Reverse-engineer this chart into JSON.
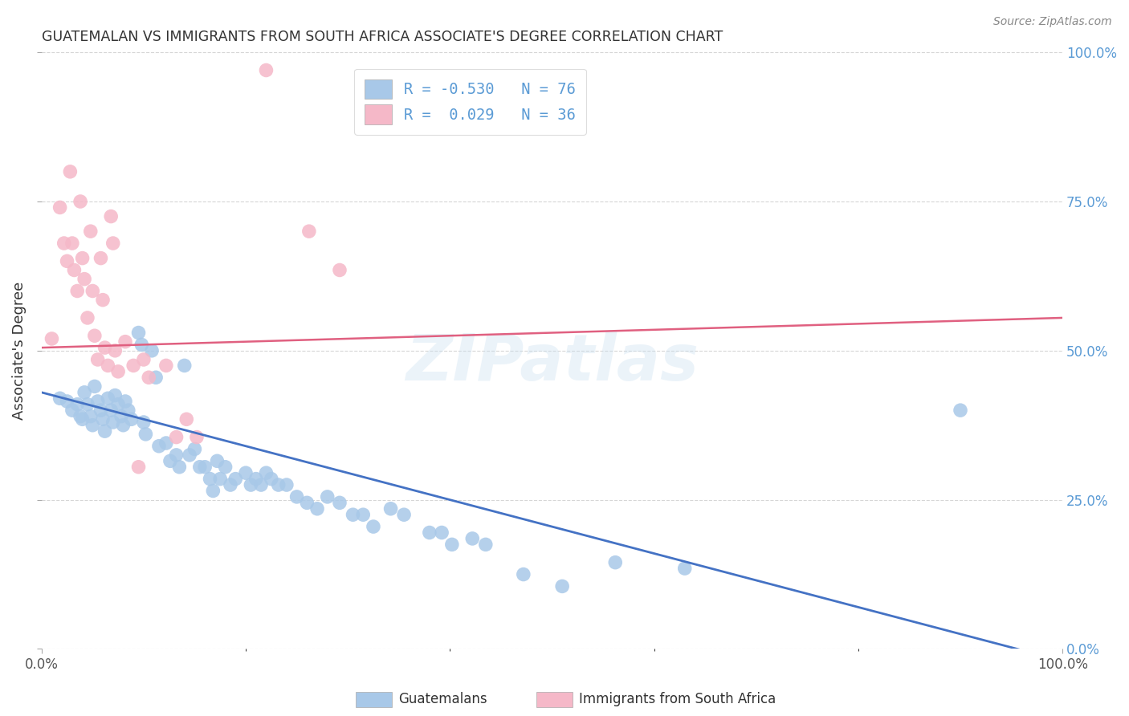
{
  "title": "GUATEMALAN VS IMMIGRANTS FROM SOUTH AFRICA ASSOCIATE'S DEGREE CORRELATION CHART",
  "source": "Source: ZipAtlas.com",
  "ylabel": "Associate's Degree",
  "ytick_labels": [
    "0.0%",
    "25.0%",
    "50.0%",
    "75.0%",
    "100.0%"
  ],
  "ytick_values": [
    0.0,
    0.25,
    0.5,
    0.75,
    1.0
  ],
  "xtick_left": "0.0%",
  "xtick_right": "100.0%",
  "legend_blue_label": "Guatemalans",
  "legend_pink_label": "Immigrants from South Africa",
  "legend_R_blue": "-0.530",
  "legend_N_blue": "76",
  "legend_R_pink": "0.029",
  "legend_N_pink": "36",
  "watermark": "ZIPatlas",
  "blue_color": "#a8c8e8",
  "pink_color": "#f5b8c8",
  "blue_line_color": "#4472c4",
  "pink_line_color": "#e06080",
  "right_axis_color": "#5b9bd5",
  "blue_scatter": [
    [
      0.018,
      0.42
    ],
    [
      0.025,
      0.415
    ],
    [
      0.03,
      0.4
    ],
    [
      0.035,
      0.41
    ],
    [
      0.038,
      0.39
    ],
    [
      0.04,
      0.385
    ],
    [
      0.042,
      0.43
    ],
    [
      0.045,
      0.41
    ],
    [
      0.048,
      0.39
    ],
    [
      0.05,
      0.375
    ],
    [
      0.052,
      0.44
    ],
    [
      0.055,
      0.415
    ],
    [
      0.058,
      0.4
    ],
    [
      0.06,
      0.385
    ],
    [
      0.062,
      0.365
    ],
    [
      0.065,
      0.42
    ],
    [
      0.068,
      0.4
    ],
    [
      0.07,
      0.38
    ],
    [
      0.072,
      0.425
    ],
    [
      0.075,
      0.41
    ],
    [
      0.078,
      0.39
    ],
    [
      0.08,
      0.375
    ],
    [
      0.082,
      0.415
    ],
    [
      0.085,
      0.4
    ],
    [
      0.088,
      0.385
    ],
    [
      0.095,
      0.53
    ],
    [
      0.098,
      0.51
    ],
    [
      0.1,
      0.38
    ],
    [
      0.102,
      0.36
    ],
    [
      0.108,
      0.5
    ],
    [
      0.112,
      0.455
    ],
    [
      0.115,
      0.34
    ],
    [
      0.122,
      0.345
    ],
    [
      0.126,
      0.315
    ],
    [
      0.132,
      0.325
    ],
    [
      0.135,
      0.305
    ],
    [
      0.14,
      0.475
    ],
    [
      0.145,
      0.325
    ],
    [
      0.15,
      0.335
    ],
    [
      0.155,
      0.305
    ],
    [
      0.16,
      0.305
    ],
    [
      0.165,
      0.285
    ],
    [
      0.168,
      0.265
    ],
    [
      0.172,
      0.315
    ],
    [
      0.175,
      0.285
    ],
    [
      0.18,
      0.305
    ],
    [
      0.185,
      0.275
    ],
    [
      0.19,
      0.285
    ],
    [
      0.2,
      0.295
    ],
    [
      0.205,
      0.275
    ],
    [
      0.21,
      0.285
    ],
    [
      0.215,
      0.275
    ],
    [
      0.22,
      0.295
    ],
    [
      0.225,
      0.285
    ],
    [
      0.232,
      0.275
    ],
    [
      0.24,
      0.275
    ],
    [
      0.25,
      0.255
    ],
    [
      0.26,
      0.245
    ],
    [
      0.27,
      0.235
    ],
    [
      0.28,
      0.255
    ],
    [
      0.292,
      0.245
    ],
    [
      0.305,
      0.225
    ],
    [
      0.315,
      0.225
    ],
    [
      0.325,
      0.205
    ],
    [
      0.342,
      0.235
    ],
    [
      0.355,
      0.225
    ],
    [
      0.38,
      0.195
    ],
    [
      0.392,
      0.195
    ],
    [
      0.402,
      0.175
    ],
    [
      0.422,
      0.185
    ],
    [
      0.435,
      0.175
    ],
    [
      0.472,
      0.125
    ],
    [
      0.51,
      0.105
    ],
    [
      0.562,
      0.145
    ],
    [
      0.63,
      0.135
    ],
    [
      0.9,
      0.4
    ]
  ],
  "pink_scatter": [
    [
      0.01,
      0.52
    ],
    [
      0.018,
      0.74
    ],
    [
      0.022,
      0.68
    ],
    [
      0.025,
      0.65
    ],
    [
      0.028,
      0.8
    ],
    [
      0.03,
      0.68
    ],
    [
      0.032,
      0.635
    ],
    [
      0.035,
      0.6
    ],
    [
      0.038,
      0.75
    ],
    [
      0.04,
      0.655
    ],
    [
      0.042,
      0.62
    ],
    [
      0.045,
      0.555
    ],
    [
      0.048,
      0.7
    ],
    [
      0.05,
      0.6
    ],
    [
      0.052,
      0.525
    ],
    [
      0.055,
      0.485
    ],
    [
      0.058,
      0.655
    ],
    [
      0.06,
      0.585
    ],
    [
      0.062,
      0.505
    ],
    [
      0.065,
      0.475
    ],
    [
      0.068,
      0.725
    ],
    [
      0.07,
      0.68
    ],
    [
      0.072,
      0.5
    ],
    [
      0.075,
      0.465
    ],
    [
      0.082,
      0.515
    ],
    [
      0.09,
      0.475
    ],
    [
      0.095,
      0.305
    ],
    [
      0.1,
      0.485
    ],
    [
      0.105,
      0.455
    ],
    [
      0.122,
      0.475
    ],
    [
      0.132,
      0.355
    ],
    [
      0.142,
      0.385
    ],
    [
      0.152,
      0.355
    ],
    [
      0.22,
      0.97
    ],
    [
      0.262,
      0.7
    ],
    [
      0.292,
      0.635
    ]
  ],
  "blue_line_x": [
    0.0,
    1.0
  ],
  "blue_line_y": [
    0.43,
    -0.02
  ],
  "pink_line_x": [
    0.0,
    1.0
  ],
  "pink_line_y": [
    0.505,
    0.555
  ],
  "xlim": [
    0.0,
    1.0
  ],
  "ylim": [
    0.0,
    1.0
  ],
  "background_color": "#ffffff",
  "grid_color": "#cccccc"
}
